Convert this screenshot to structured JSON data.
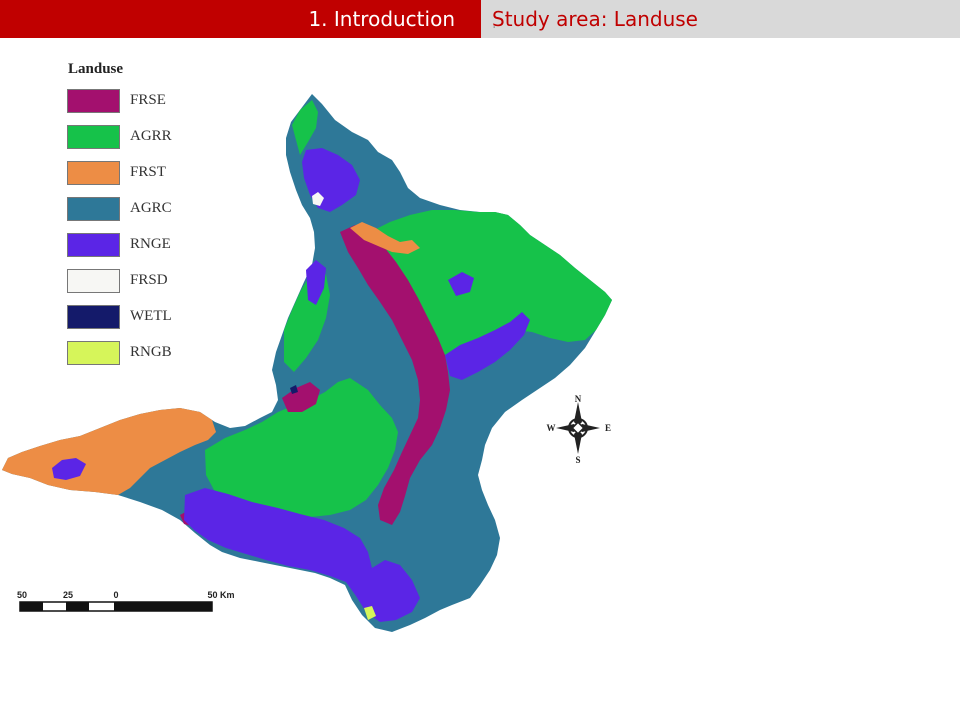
{
  "header": {
    "section": "1. Introduction",
    "title": "Study area: Landuse",
    "marker": "."
  },
  "legend": {
    "title": "Landuse",
    "items": [
      {
        "label": "FRSE",
        "color": "#a3106e"
      },
      {
        "label": "AGRR",
        "color": "#16c24a"
      },
      {
        "label": "FRST",
        "color": "#ed8d45"
      },
      {
        "label": "AGRC",
        "color": "#2e7898"
      },
      {
        "label": "RNGE",
        "color": "#5b25e6"
      },
      {
        "label": "FRSD",
        "color": "#f7f7f4"
      },
      {
        "label": "WETL",
        "color": "#141a6a"
      },
      {
        "label": "RNGB",
        "color": "#d6f55a"
      }
    ]
  },
  "compass": {
    "n": "N",
    "s": "S",
    "e": "E",
    "w": "W"
  },
  "scale": {
    "ticks": [
      "50",
      "25",
      "0",
      "50 Km"
    ]
  }
}
